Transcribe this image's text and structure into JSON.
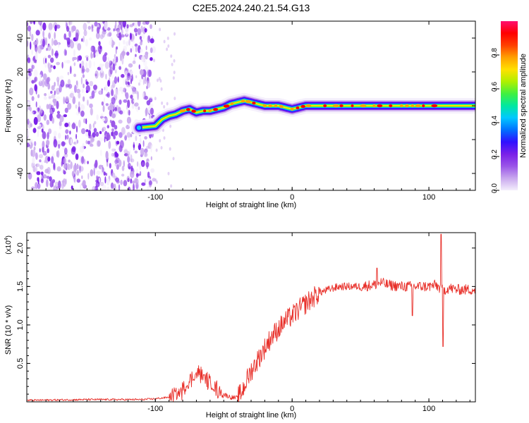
{
  "figure_title": "C2E5.2024.240.21.54.G13",
  "chart_data": [
    {
      "type": "heatmap",
      "title": "",
      "xlabel": "Height of straight line (km)",
      "ylabel": "Frequency (Hz)",
      "xlim": [
        -194,
        134
      ],
      "ylim": [
        -50,
        50
      ],
      "xticks": [
        -100,
        0,
        100
      ],
      "xtick_labels": [
        "-100",
        "0",
        "100"
      ],
      "yticks": [
        -40,
        -20,
        0,
        20,
        40
      ],
      "ytick_labels": [
        "-40",
        "-20",
        "0",
        "20",
        "40"
      ],
      "grid": false,
      "noise_region_x": [
        -194,
        -101
      ],
      "ridge": {
        "name": "signal",
        "x": [
          -112,
          -100,
          -95,
          -90,
          -85,
          -80,
          -75,
          -70,
          -65,
          -60,
          -55,
          -50,
          -45,
          -40,
          -35,
          -30,
          -25,
          -20,
          -15,
          -10,
          -5,
          0,
          5,
          10,
          20,
          40,
          60,
          80,
          100,
          120,
          134
        ],
        "y": [
          -13,
          -12,
          -8,
          -6,
          -5,
          -3,
          -2,
          -4,
          -3,
          -3,
          -2,
          -1,
          1,
          2,
          3,
          2,
          1,
          0,
          0,
          0,
          -1,
          -2,
          -1,
          0,
          0,
          0,
          0,
          0,
          0,
          0,
          0
        ]
      },
      "colorbar": {
        "label": "Normalized spectral amplitude",
        "range": [
          0,
          1
        ],
        "ticks": [
          0.0,
          0.2,
          0.4,
          0.6,
          0.8
        ],
        "tick_labels": [
          "0.0",
          "0.2",
          "0.4",
          "0.6",
          "0.8"
        ],
        "colors": [
          "#f4eefc",
          "#c9a8ee",
          "#9a55e8",
          "#7a20e8",
          "#3010ff",
          "#0070ff",
          "#00c8ff",
          "#00e8a0",
          "#40f040",
          "#b0f000",
          "#ffe000",
          "#ffa000",
          "#ff4000",
          "#ff0000",
          "#ff1070"
        ]
      }
    },
    {
      "type": "line",
      "title": "",
      "xlabel": "Height of straight line (km)",
      "ylabel": "SNR (10 * v/v)",
      "y_multiplier": "(x10",
      "y_multiplier_exp": "4",
      "y_multiplier_close": ")",
      "xlim": [
        -194,
        134
      ],
      "ylim": [
        0,
        2.2
      ],
      "xticks": [
        -100,
        0,
        100
      ],
      "xtick_labels": [
        "-100",
        "0",
        "100"
      ],
      "yticks": [
        0.5,
        1.0,
        1.5,
        2.0
      ],
      "ytick_labels": [
        "0.5",
        "1.0",
        "1.5",
        "2.0"
      ],
      "grid": false,
      "color": "#e8302a",
      "series": [
        {
          "x": [
            -194,
            -150,
            -110,
            -100,
            -90,
            -85,
            -80,
            -75,
            -72,
            -68,
            -65,
            -62,
            -58,
            -55,
            -50,
            -45,
            -40,
            -37,
            -34,
            -30,
            -25,
            -20,
            -15,
            -10,
            -5,
            0,
            5,
            10,
            15,
            20,
            25,
            30,
            35,
            40,
            50,
            60,
            65,
            70,
            80,
            90,
            100,
            105,
            110,
            115,
            120,
            125,
            134
          ],
          "y": [
            0.02,
            0.03,
            0.03,
            0.04,
            0.06,
            0.09,
            0.15,
            0.26,
            0.33,
            0.38,
            0.33,
            0.28,
            0.2,
            0.16,
            0.1,
            0.06,
            0.05,
            0.12,
            0.25,
            0.4,
            0.55,
            0.7,
            0.85,
            0.95,
            1.05,
            1.12,
            1.2,
            1.28,
            1.35,
            1.42,
            1.45,
            1.48,
            1.5,
            1.5,
            1.5,
            1.52,
            1.55,
            1.52,
            1.5,
            1.5,
            1.5,
            1.52,
            1.45,
            1.48,
            1.46,
            1.46,
            1.46
          ]
        }
      ],
      "annotations": [
        {
          "x": 110,
          "y": 2.15,
          "text": ""
        },
        {
          "x": 110,
          "y": 0.72,
          "text": ""
        }
      ]
    }
  ]
}
